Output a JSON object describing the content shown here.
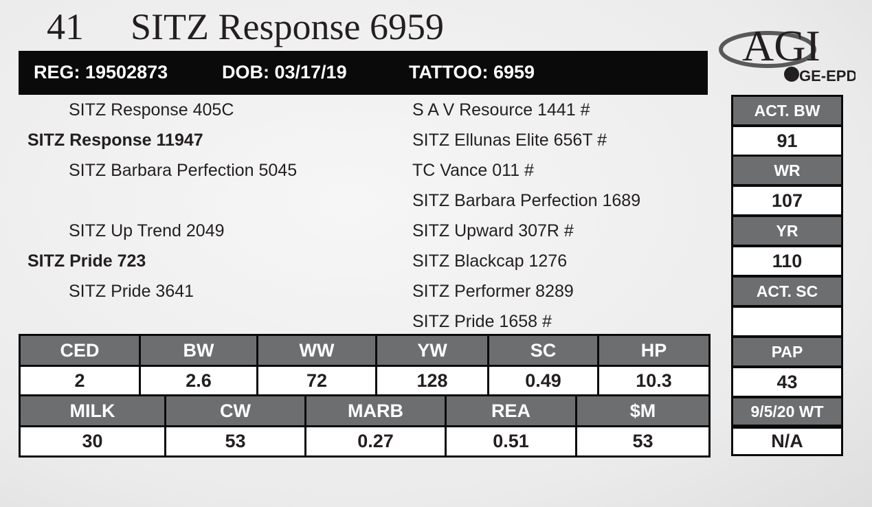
{
  "header": {
    "lot": "41",
    "name": "SITZ Response 6959"
  },
  "info_bar": {
    "reg": "REG: 19502873",
    "dob": "DOB: 03/17/19",
    "tattoo": "TATTOO: 6959"
  },
  "logo": {
    "brand": "AGI",
    "sub": "GE-EPD"
  },
  "pedigree": {
    "sire_side": {
      "sire": "SITZ Response 405C",
      "parent": "SITZ Response 11947",
      "dam": "SITZ Barbara Perfection 5045"
    },
    "dam_side": {
      "sire": "SITZ Up Trend 2049",
      "parent": "SITZ Pride 723",
      "dam": "SITZ Pride 3641"
    },
    "ancestors": [
      "S A V Resource 1441 #",
      "SITZ Ellunas Elite 656T #",
      "TC Vance 011 #",
      "SITZ Barbara Perfection 1689",
      "SITZ Upward 307R #",
      "SITZ Blackcap 1276",
      "SITZ Performer 8289",
      "SITZ Pride 1658 #"
    ]
  },
  "side_box": {
    "act_bw": {
      "label": "ACT. BW",
      "value": "91"
    },
    "wr": {
      "label": "WR",
      "value": "107"
    },
    "yr": {
      "label": "YR",
      "value": "110"
    },
    "act_sc": {
      "label": "ACT. SC"
    },
    "pap": {
      "label": "PAP",
      "value": "43"
    },
    "weight": {
      "label": "9/5/20 WT",
      "value": "N/A"
    }
  },
  "epd_table": {
    "rows": [
      {
        "headers": [
          "CED",
          "BW",
          "WW",
          "YW",
          "SC",
          "HP"
        ],
        "values": [
          "2",
          "2.6",
          "72",
          "128",
          "0.49",
          "10.3"
        ]
      },
      {
        "headers": [
          "MILK",
          "CW",
          "MARB",
          "REA",
          "$M"
        ],
        "values": [
          "30",
          "53",
          "0.27",
          "0.51",
          "53"
        ]
      }
    ]
  }
}
